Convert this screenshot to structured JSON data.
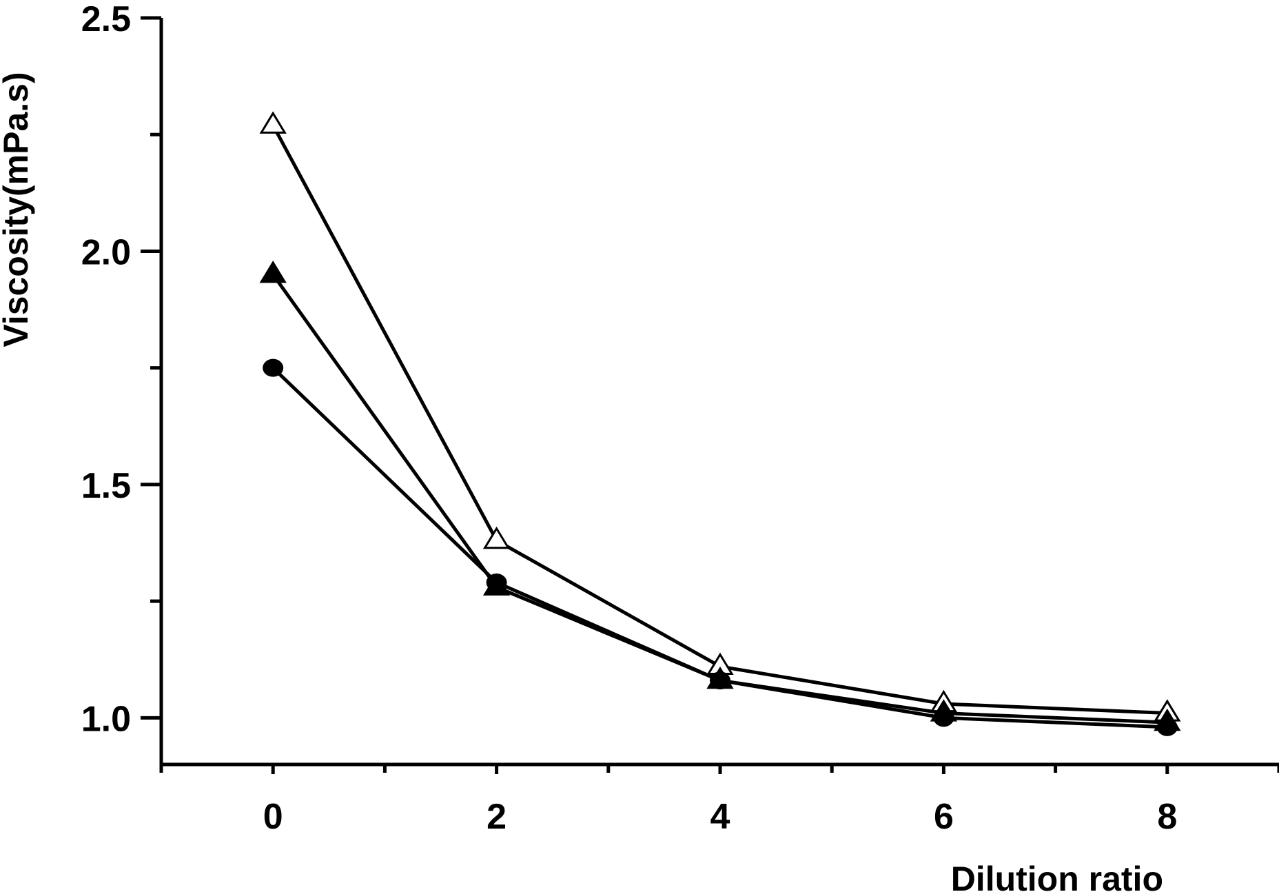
{
  "chart_data": {
    "type": "line",
    "title": "",
    "xlabel": "Dilution ratio",
    "ylabel": "Viscosity(mPa.s)",
    "x": [
      0,
      2,
      4,
      6,
      8
    ],
    "xlim": [
      -1,
      9
    ],
    "ylim": [
      0.9,
      2.5
    ],
    "x_ticks": [
      0,
      2,
      4,
      6,
      8
    ],
    "x_tick_labels": [
      "0",
      "2",
      "4",
      "6",
      "8"
    ],
    "y_ticks": [
      1.0,
      1.5,
      2.0,
      2.5
    ],
    "y_tick_labels": [
      "1.0",
      "1.5",
      "2.0",
      "2.5"
    ],
    "y_minor_ticks": [
      1.25,
      1.75,
      2.25
    ],
    "x_minor_ticks": [
      -1,
      1,
      3,
      5,
      7,
      9
    ],
    "grid": false,
    "legend": "none",
    "series": [
      {
        "marker": "open-triangle",
        "values": [
          2.27,
          1.38,
          1.11,
          1.03,
          1.01
        ]
      },
      {
        "marker": "filled-triangle",
        "values": [
          1.95,
          1.28,
          1.08,
          1.01,
          0.99
        ]
      },
      {
        "marker": "filled-circle",
        "values": [
          1.75,
          1.29,
          1.08,
          1.0,
          0.98
        ]
      }
    ],
    "colors": {
      "line": "#000000",
      "open_marker_fill": "#ffffff"
    }
  }
}
